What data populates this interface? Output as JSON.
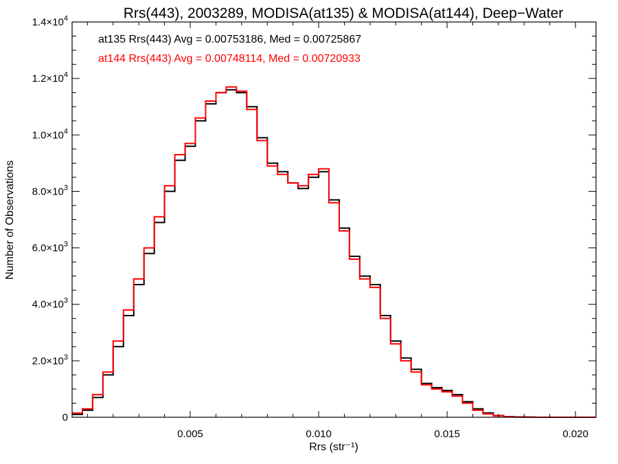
{
  "chart_data": {
    "type": "line",
    "title": "Rrs(443), 2003289, MODISA(at135) & MODISA(at144), Deep−Water",
    "xlabel": "Rrs (str⁻¹)",
    "ylabel": "Number of Observations",
    "xlim": [
      0.0004,
      0.0208
    ],
    "ylim": [
      0,
      14000
    ],
    "x_ticks": [
      {
        "value": 0.005,
        "label": "0.005"
      },
      {
        "value": 0.01,
        "label": "0.010"
      },
      {
        "value": 0.015,
        "label": "0.015"
      },
      {
        "value": 0.02,
        "label": "0.020"
      }
    ],
    "y_ticks": [
      {
        "value": 0,
        "mant": "0",
        "exp": ""
      },
      {
        "value": 2000,
        "mant": "2.0×10",
        "exp": "3"
      },
      {
        "value": 4000,
        "mant": "4.0×10",
        "exp": "3"
      },
      {
        "value": 6000,
        "mant": "6.0×10",
        "exp": "3"
      },
      {
        "value": 8000,
        "mant": "8.0×10",
        "exp": "3"
      },
      {
        "value": 10000,
        "mant": "1.0×10",
        "exp": "4"
      },
      {
        "value": 12000,
        "mant": "1.2×10",
        "exp": "4"
      },
      {
        "value": 14000,
        "mant": "1.4×10",
        "exp": "4"
      }
    ],
    "grid": false,
    "legend_position": "top-left",
    "series": [
      {
        "label": "at135 Rrs(443) Avg = 0.00753186, Med = 0.00725867",
        "color": "#000000",
        "x": [
          0.0004,
          0.0008,
          0.0012,
          0.0016,
          0.002,
          0.0024,
          0.0028,
          0.0032,
          0.0036,
          0.004,
          0.0044,
          0.0048,
          0.0052,
          0.0056,
          0.006,
          0.0064,
          0.0068,
          0.0072,
          0.0076,
          0.008,
          0.0084,
          0.0088,
          0.0092,
          0.0096,
          0.01,
          0.0104,
          0.0108,
          0.0112,
          0.0116,
          0.012,
          0.0124,
          0.0128,
          0.0132,
          0.0136,
          0.014,
          0.0144,
          0.0148,
          0.0152,
          0.0156,
          0.016,
          0.0164,
          0.0168,
          0.0172,
          0.0176,
          0.018,
          0.0184,
          0.0188,
          0.0192,
          0.0196,
          0.02,
          0.0204,
          0.0208
        ],
        "y": [
          100,
          250,
          700,
          1500,
          2500,
          3600,
          4700,
          5800,
          6900,
          8000,
          9100,
          9600,
          10500,
          11100,
          11500,
          11600,
          11500,
          11000,
          9900,
          9000,
          8700,
          8300,
          8100,
          8500,
          8700,
          7700,
          6700,
          5700,
          5000,
          4700,
          3600,
          2700,
          2100,
          1700,
          1200,
          1050,
          950,
          800,
          550,
          300,
          150,
          60,
          25,
          10,
          5,
          0,
          0,
          0,
          0,
          0,
          0,
          0
        ]
      },
      {
        "label": "at144 Rrs(443) Avg = 0.00748114, Med = 0.00720933",
        "color": "#ff0000",
        "x": [
          0.0004,
          0.0008,
          0.0012,
          0.0016,
          0.002,
          0.0024,
          0.0028,
          0.0032,
          0.0036,
          0.004,
          0.0044,
          0.0048,
          0.0052,
          0.0056,
          0.006,
          0.0064,
          0.0068,
          0.0072,
          0.0076,
          0.008,
          0.0084,
          0.0088,
          0.0092,
          0.0096,
          0.01,
          0.0104,
          0.0108,
          0.0112,
          0.0116,
          0.012,
          0.0124,
          0.0128,
          0.0132,
          0.0136,
          0.014,
          0.0144,
          0.0148,
          0.0152,
          0.0156,
          0.016,
          0.0164,
          0.0168,
          0.0172,
          0.0176,
          0.018,
          0.0184,
          0.0188,
          0.0192,
          0.0196,
          0.02,
          0.0204,
          0.0208
        ],
        "y": [
          150,
          300,
          800,
          1600,
          2700,
          3800,
          4900,
          6000,
          7100,
          8200,
          9300,
          9700,
          10600,
          11200,
          11500,
          11700,
          11550,
          10900,
          9800,
          8900,
          8600,
          8300,
          8200,
          8600,
          8800,
          7600,
          6600,
          5600,
          4900,
          4600,
          3500,
          2600,
          2000,
          1600,
          1150,
          1000,
          900,
          750,
          500,
          250,
          120,
          50,
          20,
          8,
          3,
          0,
          0,
          0,
          0,
          0,
          0,
          0
        ]
      }
    ]
  }
}
